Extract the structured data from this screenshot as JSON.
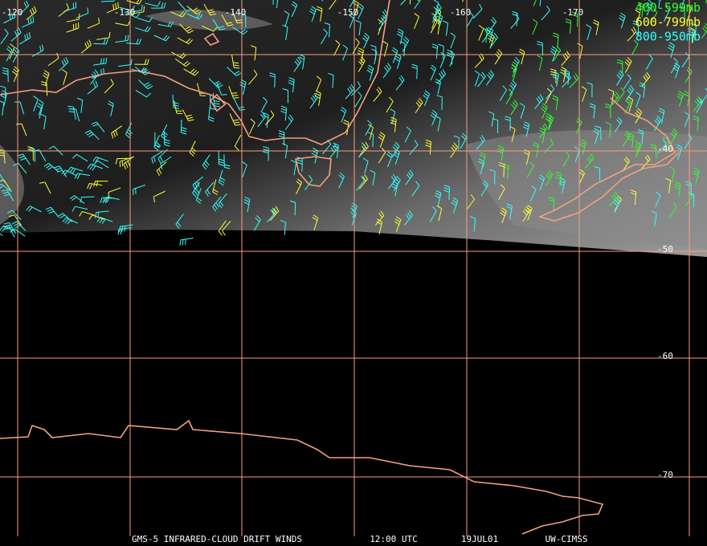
{
  "map": {
    "longitude_labels": [
      "-120",
      "-130",
      "-140",
      "-150",
      "-160",
      "-170"
    ],
    "latitude_labels": [
      "-40",
      "-50",
      "-60",
      "-70"
    ],
    "legend": [
      {
        "label": "400-599mb",
        "color": "#33ff33"
      },
      {
        "label": "600-799mb",
        "color": "#ffff33"
      },
      {
        "label": "800-950mb",
        "color": "#33ffff"
      }
    ],
    "footer": [
      "GMS-5 INFRARED-CLOUD DRIFT WINDS",
      "12:00 UTC",
      "19JUL01",
      "UW-CIMSS"
    ]
  }
}
